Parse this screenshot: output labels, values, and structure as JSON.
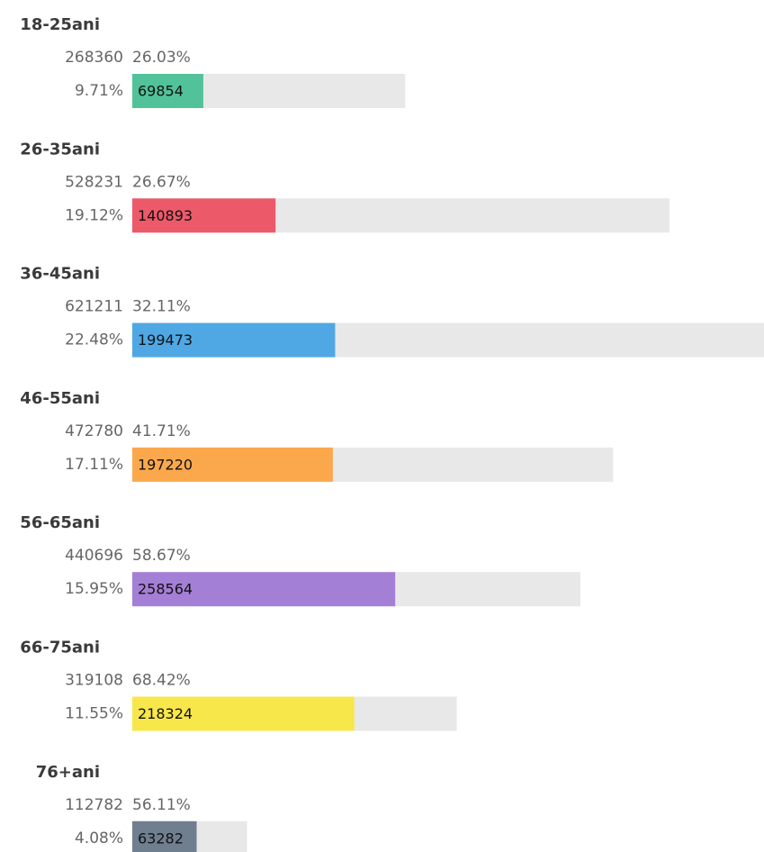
{
  "groups": [
    {
      "label": "18-25ani",
      "total": 268360,
      "percent": "26.03%",
      "share": "9.71%",
      "value": 69854,
      "color": "#52c29b"
    },
    {
      "label": "26-35ani",
      "total": 528231,
      "percent": "26.67%",
      "share": "19.12%",
      "value": 140893,
      "color": "#ec5a69"
    },
    {
      "label": "36-45ani",
      "total": 621211,
      "percent": "32.11%",
      "share": "22.48%",
      "value": 199473,
      "color": "#4fa7e4"
    },
    {
      "label": "46-55ani",
      "total": 472780,
      "percent": "41.71%",
      "share": "17.11%",
      "value": 197220,
      "color": "#fba84d"
    },
    {
      "label": "56-65ani",
      "total": 440696,
      "percent": "58.67%",
      "share": "15.95%",
      "value": 258564,
      "color": "#a47fd6"
    },
    {
      "label": "66-75ani",
      "total": 319108,
      "percent": "68.42%",
      "share": "11.55%",
      "value": 218324,
      "color": "#f8e74a"
    },
    {
      "label": "76+ani",
      "total": 112782,
      "percent": "56.11%",
      "share": "4.08%",
      "value": 63282,
      "color": "#6f7f8f"
    }
  ]
}
